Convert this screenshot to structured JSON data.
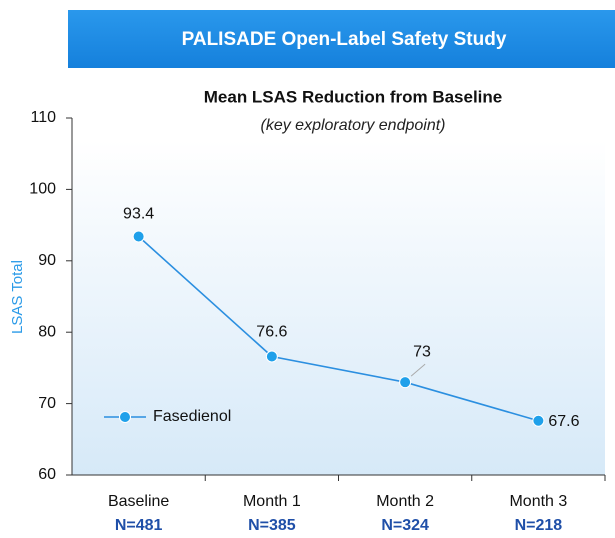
{
  "header": {
    "title": "PALISADE Open-Label Safety Study"
  },
  "chart_data": {
    "type": "line",
    "title": "Mean LSAS Reduction from Baseline",
    "subtitle": "(key exploratory endpoint)",
    "y_label": "LSAS Total",
    "categories": [
      "Baseline",
      "Month 1",
      "Month 2",
      "Month 3"
    ],
    "n_labels": [
      "N=481",
      "N=385",
      "N=324",
      "N=218"
    ],
    "series": [
      {
        "name": "Fasedienol",
        "color": "#2b8fe0",
        "values": [
          93.4,
          76.6,
          73,
          67.6
        ]
      }
    ],
    "ylim": [
      60,
      110
    ],
    "yticks": [
      60,
      70,
      80,
      90,
      100,
      110
    ],
    "legend": "left"
  }
}
